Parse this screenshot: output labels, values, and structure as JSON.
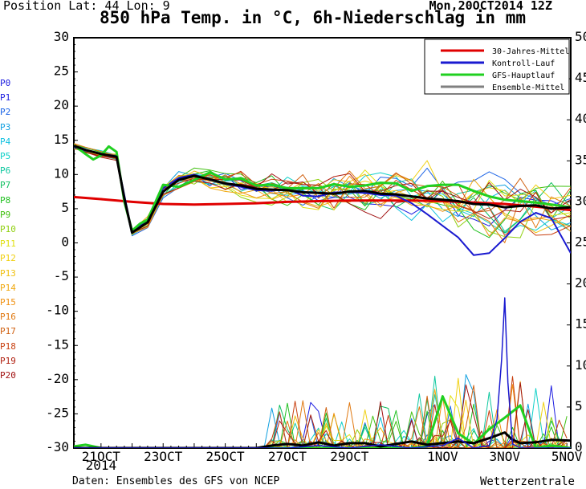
{
  "header": {
    "position": "Position   Lat: 44 Lon: 9",
    "title": "850 hPa Temp. in °C, 6h-Niederschlag in mm",
    "date": "Mon,20OCT2014 12Z"
  },
  "footer": {
    "source": "Daten: Ensembles des GFS von NCEP",
    "brand": "Wetterzentrale"
  },
  "members": [
    {
      "label": "P0",
      "color": "#1c1ce0"
    },
    {
      "label": "P1",
      "color": "#1c1ce0"
    },
    {
      "label": "P2",
      "color": "#1c64e6"
    },
    {
      "label": "P3",
      "color": "#10a0e0"
    },
    {
      "label": "P4",
      "color": "#10c0e0"
    },
    {
      "label": "P5",
      "color": "#10d0c8"
    },
    {
      "label": "P6",
      "color": "#10c8a0"
    },
    {
      "label": "P7",
      "color": "#10c060"
    },
    {
      "label": "P8",
      "color": "#20c020"
    },
    {
      "label": "P9",
      "color": "#40c010"
    },
    {
      "label": "P10",
      "color": "#90d010"
    },
    {
      "label": "P11",
      "color": "#e0e010"
    },
    {
      "label": "P12",
      "color": "#f0d010"
    },
    {
      "label": "P13",
      "color": "#f0c010"
    },
    {
      "label": "P14",
      "color": "#f0a810"
    },
    {
      "label": "P15",
      "color": "#f09010"
    },
    {
      "label": "P16",
      "color": "#e07810"
    },
    {
      "label": "P17",
      "color": "#d06010"
    },
    {
      "label": "P18",
      "color": "#c84010"
    },
    {
      "label": "P19",
      "color": "#b02010"
    },
    {
      "label": "P20",
      "color": "#a01010"
    }
  ],
  "chart_data": {
    "type": "line",
    "title": "850 hPa Temp. in °C, 6h-Niederschlag in mm",
    "x_labels": [
      {
        "day": 0,
        "label": "21OCT",
        "sub": "2014"
      },
      {
        "day": 2,
        "label": "23OCT"
      },
      {
        "day": 4,
        "label": "25OCT"
      },
      {
        "day": 6,
        "label": "27OCT"
      },
      {
        "day": 8,
        "label": "29OCT"
      },
      {
        "day": 11,
        "label": "1NOV"
      },
      {
        "day": 13,
        "label": "3NOV"
      },
      {
        "day": 15,
        "label": "5NOV"
      }
    ],
    "x_range_days": [
      -0.875,
      15.125
    ],
    "y_left": {
      "min": -30,
      "max": 30,
      "step": 5,
      "unit": "°C"
    },
    "y_right": {
      "min": 0,
      "max": 50,
      "step": 5,
      "unit": "mm"
    },
    "grid": false,
    "legend_position": "top-right",
    "legend": [
      {
        "name": "30-Jahres-Mittel",
        "color": "#e00000"
      },
      {
        "name": "Kontroll-Lauf",
        "color": "#1a1ad0"
      },
      {
        "name": "GFS-Hauptlauf",
        "color": "#20d020"
      },
      {
        "name": "Ensemble-Mittel",
        "color": "#808080"
      }
    ],
    "series_temp": [
      {
        "name": "30-Jahres-Mittel",
        "color": "#e00000",
        "width": 3,
        "x": [
          -0.875,
          0,
          1,
          2,
          3,
          4,
          5,
          6,
          7,
          8,
          9,
          10,
          11,
          12,
          13,
          14,
          15.125
        ],
        "y": [
          6.7,
          6.4,
          6.0,
          5.7,
          5.6,
          5.7,
          5.8,
          6.0,
          6.1,
          6.2,
          6.2,
          6.2,
          6.1,
          5.9,
          5.7,
          5.3,
          4.8
        ]
      },
      {
        "name": "Kontroll-Lauf",
        "color": "#1a1ad0",
        "width": 2,
        "x": [
          -0.875,
          -0.5,
          0,
          0.5,
          0.75,
          1.0,
          1.5,
          2.0,
          2.5,
          3.0,
          3.5,
          4.0,
          4.5,
          5.0,
          5.5,
          6.0,
          6.5,
          7.0,
          7.5,
          8.0,
          8.5,
          9.0,
          9.5,
          10.0,
          10.5,
          11.0,
          11.5,
          12.0,
          12.5,
          13.0,
          13.5,
          14.0,
          14.5,
          15.125
        ],
        "y": [
          14,
          13.5,
          13,
          12.7,
          7,
          1.5,
          3.5,
          8,
          9.5,
          10,
          9.2,
          8.6,
          8.2,
          7.7,
          7.6,
          7.9,
          6.9,
          6.8,
          7.4,
          7.4,
          7.3,
          7.0,
          6.9,
          5.8,
          4.2,
          2.5,
          0.8,
          -1.8,
          -1.5,
          0.7,
          3.1,
          4.4,
          3.6,
          -1.5
        ]
      },
      {
        "name": "GFS-Hauptlauf",
        "color": "#20d020",
        "width": 3,
        "x": [
          -0.875,
          -0.5,
          -0.25,
          0,
          0.25,
          0.5,
          0.75,
          1.0,
          1.25,
          1.5,
          2.0,
          2.5,
          3.0,
          3.5,
          4.0,
          4.5,
          5.0,
          5.5,
          6.0,
          6.5,
          7.0,
          7.5,
          8.0,
          8.5,
          9.0,
          9.5,
          10.0,
          10.5,
          11.0,
          11.5,
          12.0,
          12.5,
          13.0,
          13.5,
          14.0,
          14.5,
          15.125
        ],
        "y": [
          14.3,
          13,
          12.2,
          12.8,
          14.1,
          13.3,
          6,
          1.8,
          2.8,
          3.4,
          8.5,
          8.2,
          9.2,
          10.3,
          9.3,
          9.4,
          8.4,
          8.5,
          8.0,
          8.0,
          8.0,
          8.6,
          8.2,
          8.4,
          8.8,
          8.7,
          7.6,
          8.3,
          8.5,
          8.5,
          7.6,
          6.8,
          6.3,
          6.1,
          5.9,
          5.6,
          5.2
        ]
      },
      {
        "name": "Ensemble-Mittel",
        "color": "#000000",
        "width": 3,
        "x": [
          -0.875,
          -0.5,
          0,
          0.5,
          0.75,
          1.0,
          1.5,
          2.0,
          2.5,
          3.0,
          3.5,
          4.0,
          4.5,
          5.0,
          5.5,
          6.0,
          6.5,
          7.0,
          7.5,
          8.0,
          8.5,
          9.0,
          9.5,
          10.0,
          10.5,
          11.0,
          11.5,
          12.0,
          12.5,
          13.0,
          13.5,
          14.0,
          14.5,
          15.125
        ],
        "y": [
          14.2,
          13.6,
          13,
          12.6,
          6.5,
          1.5,
          3.0,
          7.5,
          9.2,
          9.8,
          9.3,
          8.7,
          8.4,
          7.9,
          7.8,
          7.7,
          7.4,
          7.3,
          7.2,
          7.5,
          7.6,
          7.2,
          7.1,
          6.8,
          6.5,
          6.3,
          6.1,
          5.7,
          5.6,
          5.2,
          5.4,
          5.5,
          5.0,
          5.2
        ]
      }
    ],
    "series_precip": [
      {
        "name": "GFS-Hauptlauf",
        "color": "#20d020",
        "width": 3,
        "x": [
          -0.875,
          -0.5,
          0,
          1,
          2,
          3,
          4,
          5,
          6,
          6.5,
          7,
          7.5,
          8,
          8.5,
          9,
          9.5,
          10,
          10.5,
          11,
          11.5,
          12,
          12.5,
          13,
          13.5,
          14,
          14.5,
          15.125
        ],
        "y": [
          0.2,
          0.4,
          0,
          0,
          0,
          0,
          0,
          0,
          0,
          0,
          0,
          0,
          0,
          0,
          0,
          0,
          0,
          0.2,
          6.3,
          1.8,
          0.5,
          2.3,
          3.7,
          5.2,
          0,
          0.3,
          0
        ]
      },
      {
        "name": "Ensemble-Mittel",
        "color": "#000000",
        "width": 3,
        "x": [
          -0.875,
          0,
          1,
          2,
          3,
          4,
          5,
          5.5,
          6,
          6.5,
          7,
          7.5,
          8,
          8.5,
          9,
          9.5,
          10,
          10.5,
          11,
          11.5,
          12,
          12.5,
          13,
          13.25,
          13.5,
          14,
          14.5,
          15.125
        ],
        "y": [
          0,
          0,
          0,
          0,
          0,
          0,
          0,
          0.3,
          0.5,
          0.3,
          0.7,
          0.3,
          0.6,
          0.6,
          0.2,
          0.5,
          0.8,
          0.4,
          0.6,
          0.8,
          0.6,
          1.2,
          1.9,
          1.0,
          0.6,
          0.7,
          1.0,
          0.9
        ]
      },
      {
        "name": "Kontroll-Lauf",
        "color": "#1a1ad0",
        "width": 1.5,
        "x": [
          -0.875,
          6,
          7,
          8,
          9,
          10,
          11,
          11.5,
          12,
          12.5,
          12.75,
          12.9,
          13.0,
          13.1,
          13.25,
          13.5,
          14,
          15.125
        ],
        "y": [
          0,
          0,
          0.3,
          0,
          0.4,
          0,
          0.3,
          1.2,
          0,
          0.3,
          3.5,
          10.8,
          18.3,
          8.0,
          0.5,
          0,
          0,
          0
        ]
      }
    ]
  }
}
